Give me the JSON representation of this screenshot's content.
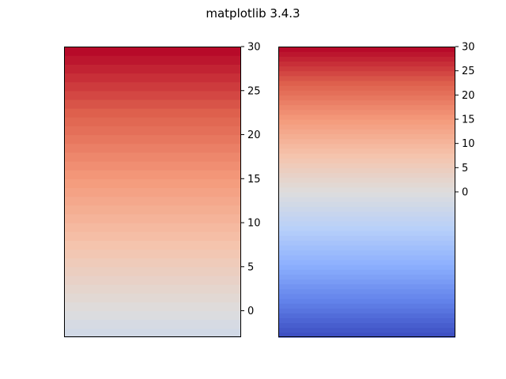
{
  "suptitle": "matplotlib 3.4.3",
  "chart_data": [
    {
      "type": "heatmap",
      "colormap": "coolwarm",
      "value_range": [
        -3,
        30
      ],
      "tick_values": [
        0,
        5,
        10,
        15,
        20,
        25,
        30
      ],
      "tick_labels": [
        "0",
        "5",
        "10",
        "15",
        "20",
        "25",
        "30"
      ],
      "color_scale_min": -30,
      "color_scale_max": 30,
      "n_bands": 33,
      "orientation": "vertical",
      "ticks_side": "right"
    },
    {
      "type": "heatmap",
      "colormap": "coolwarm",
      "value_range": [
        -30,
        30
      ],
      "tick_values": [
        0,
        5,
        10,
        15,
        20,
        25,
        30
      ],
      "tick_labels": [
        "0",
        "5",
        "10",
        "15",
        "20",
        "25",
        "30"
      ],
      "color_scale_min": -30,
      "color_scale_max": 30,
      "n_bands": 60,
      "orientation": "vertical",
      "ticks_side": "right"
    }
  ]
}
